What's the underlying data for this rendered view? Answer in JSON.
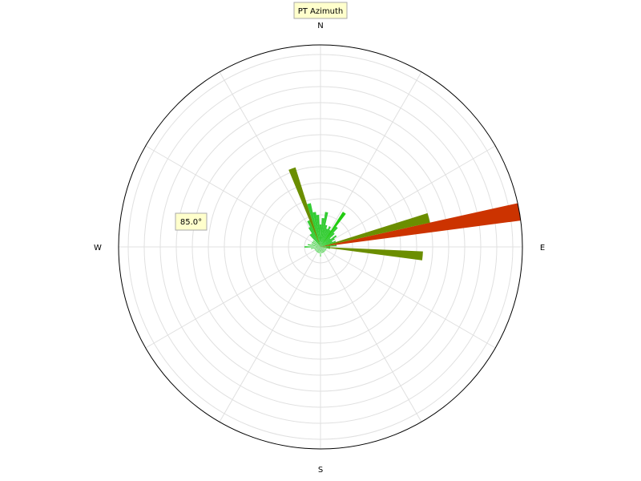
{
  "chart_data": {
    "type": "rose",
    "title": "PT Azimuth",
    "annotation": "85.0°",
    "directions": {
      "north": "N",
      "east": "E",
      "south": "S",
      "west": "W"
    },
    "radial_max": 63,
    "radial_ring_step": 5,
    "grid": true,
    "bin_width_deg": 5,
    "bins": [
      {
        "azimuth": 80,
        "value": 63,
        "color": "#cc3300"
      },
      {
        "azimuth": 75,
        "value": 35,
        "color": "#6b8e00"
      },
      {
        "azimuth": 95,
        "value": 32,
        "color": "#6b8e00"
      },
      {
        "azimuth": 85,
        "value": 5,
        "color": "#33cc33"
      },
      {
        "azimuth": 90,
        "value": 3,
        "color": "#33cc33"
      },
      {
        "azimuth": 70,
        "value": 5,
        "color": "#33cc33"
      },
      {
        "azimuth": 65,
        "value": 4,
        "color": "#33cc33"
      },
      {
        "azimuth": 60,
        "value": 5,
        "color": "#33cc33"
      },
      {
        "azimuth": 55,
        "value": 6,
        "color": "#33cc33"
      },
      {
        "azimuth": 50,
        "value": 4,
        "color": "#33cc33"
      },
      {
        "azimuth": 45,
        "value": 6,
        "color": "#33cc33"
      },
      {
        "azimuth": 40,
        "value": 8,
        "color": "#33cc33"
      },
      {
        "azimuth": 35,
        "value": 13,
        "color": "#22cc11"
      },
      {
        "azimuth": 30,
        "value": 6,
        "color": "#33cc33"
      },
      {
        "azimuth": 25,
        "value": 7,
        "color": "#33cc33"
      },
      {
        "azimuth": 20,
        "value": 6,
        "color": "#33cc33"
      },
      {
        "azimuth": 15,
        "value": 7,
        "color": "#33cc33"
      },
      {
        "azimuth": 10,
        "value": 11,
        "color": "#33cc33"
      },
      {
        "azimuth": 5,
        "value": 9,
        "color": "#33cc33"
      },
      {
        "azimuth": 0,
        "value": 7,
        "color": "#33cc33"
      },
      {
        "azimuth": 355,
        "value": 10,
        "color": "#33cc33"
      },
      {
        "azimuth": 350,
        "value": 11,
        "color": "#33cc33"
      },
      {
        "azimuth": 345,
        "value": 14,
        "color": "#33cc33"
      },
      {
        "azimuth": 340,
        "value": 26,
        "color": "#6b8e00"
      },
      {
        "azimuth": 335,
        "value": 9,
        "color": "#33cc33"
      },
      {
        "azimuth": 330,
        "value": 7,
        "color": "#33cc33"
      },
      {
        "azimuth": 325,
        "value": 5,
        "color": "#33cc33"
      },
      {
        "azimuth": 320,
        "value": 5,
        "color": "#33cc33"
      },
      {
        "azimuth": 310,
        "value": 3,
        "color": "#33cc33"
      },
      {
        "azimuth": 300,
        "value": 3,
        "color": "#33cc33"
      },
      {
        "azimuth": 290,
        "value": 3,
        "color": "#33cc33"
      },
      {
        "azimuth": 280,
        "value": 4,
        "color": "#33cc33"
      },
      {
        "azimuth": 270,
        "value": 5,
        "color": "#33cc33"
      },
      {
        "azimuth": 100,
        "value": 3,
        "color": "#33cc33"
      },
      {
        "azimuth": 110,
        "value": 2,
        "color": "#33cc33"
      },
      {
        "azimuth": 120,
        "value": 2,
        "color": "#33cc33"
      },
      {
        "azimuth": 130,
        "value": 2,
        "color": "#33cc33"
      },
      {
        "azimuth": 140,
        "value": 2,
        "color": "#33cc33"
      },
      {
        "azimuth": 150,
        "value": 2,
        "color": "#33cc33"
      },
      {
        "azimuth": 160,
        "value": 2,
        "color": "#33cc33"
      },
      {
        "azimuth": 170,
        "value": 2,
        "color": "#33cc33"
      },
      {
        "azimuth": 180,
        "value": 3,
        "color": "#33cc33"
      },
      {
        "azimuth": 190,
        "value": 2,
        "color": "#33cc33"
      },
      {
        "azimuth": 200,
        "value": 2,
        "color": "#33cc33"
      },
      {
        "azimuth": 210,
        "value": 2,
        "color": "#33cc33"
      },
      {
        "azimuth": 220,
        "value": 2,
        "color": "#33cc33"
      },
      {
        "azimuth": 230,
        "value": 2,
        "color": "#33cc33"
      },
      {
        "azimuth": 240,
        "value": 2,
        "color": "#33cc33"
      },
      {
        "azimuth": 250,
        "value": 2,
        "color": "#33cc33"
      },
      {
        "azimuth": 260,
        "value": 3,
        "color": "#33cc33"
      }
    ],
    "colors": {
      "box_fill": "#ffffcc",
      "box_stroke": "#aaaaaa",
      "grid": "#e0e0e0",
      "frame": "#000000"
    }
  }
}
